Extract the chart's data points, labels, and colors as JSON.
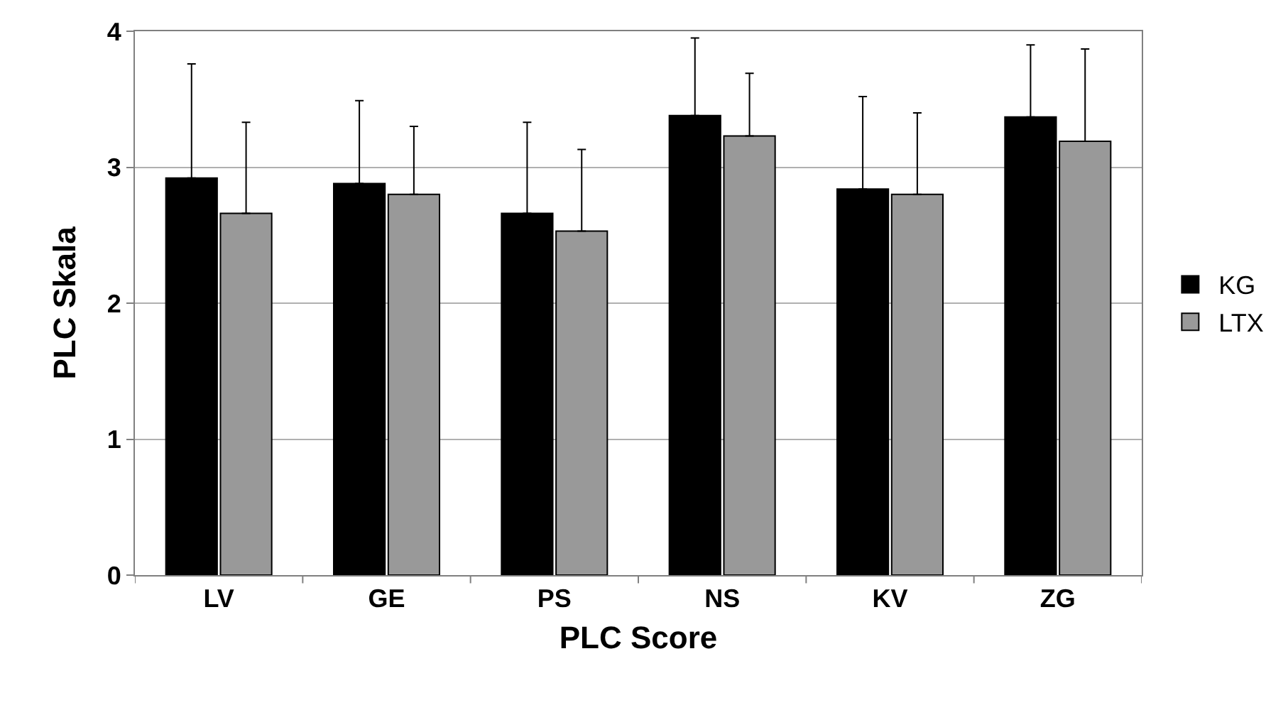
{
  "chart_data": {
    "type": "bar",
    "xlabel": "PLC Score",
    "ylabel": "PLC Skala",
    "categories": [
      "LV",
      "GE",
      "PS",
      "NS",
      "KV",
      "ZG"
    ],
    "series": [
      {
        "name": "KG",
        "color": "#000000",
        "values": [
          2.92,
          2.88,
          2.66,
          3.38,
          2.84,
          3.37
        ],
        "errors": [
          [
            2.92,
            3.76
          ],
          [
            2.88,
            3.49
          ],
          [
            2.66,
            3.33
          ],
          [
            3.38,
            3.95
          ],
          [
            2.84,
            3.52
          ],
          [
            3.37,
            3.9
          ]
        ]
      },
      {
        "name": "LTX",
        "color": "#999999",
        "values": [
          2.66,
          2.8,
          2.53,
          3.23,
          2.8,
          3.19
        ],
        "errors": [
          [
            2.66,
            3.33
          ],
          [
            2.8,
            3.3
          ],
          [
            2.53,
            3.13
          ],
          [
            3.23,
            3.69
          ],
          [
            2.8,
            3.4
          ],
          [
            3.19,
            3.87
          ]
        ]
      }
    ],
    "ylim": [
      0,
      4
    ],
    "yticks": [
      0,
      1,
      2,
      3,
      4
    ],
    "grid": "y",
    "legend": "right"
  }
}
